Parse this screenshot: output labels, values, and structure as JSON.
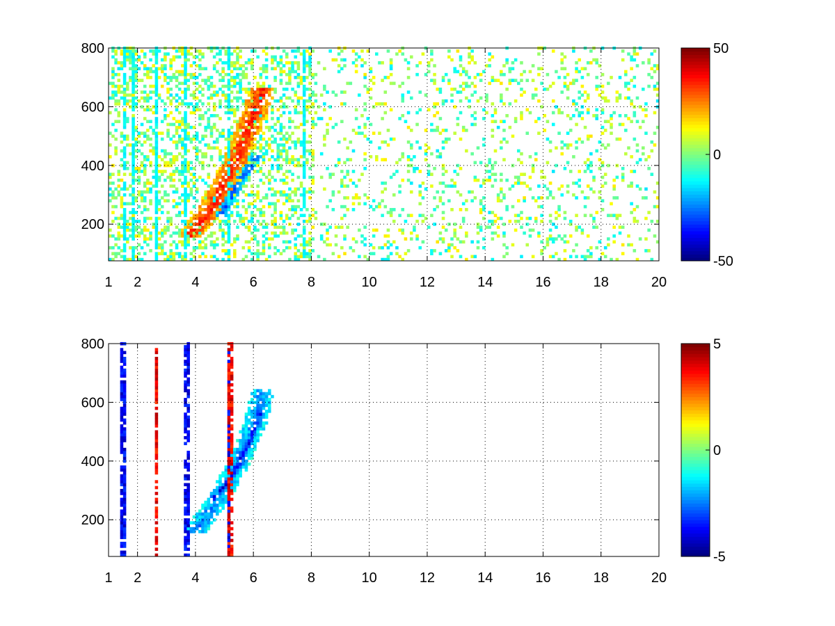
{
  "chart_data": [
    {
      "type": "heatmap",
      "title": "",
      "xlabel": "",
      "ylabel": "",
      "xlim": [
        1,
        20
      ],
      "ylim": [
        75,
        800
      ],
      "x_ticks": [
        1,
        2,
        4,
        6,
        8,
        10,
        12,
        14,
        16,
        18,
        20
      ],
      "x_tick_labels": [
        "1",
        "2",
        "4",
        "6",
        "8",
        "10",
        "12",
        "14",
        "16",
        "18",
        "20"
      ],
      "y_ticks": [
        200,
        400,
        600,
        800
      ],
      "y_tick_labels": [
        "200",
        "400",
        "600",
        "800"
      ],
      "grid": true,
      "colormap": "jet",
      "colorbar": {
        "min": -50,
        "max": 50,
        "tick_values": [
          -50,
          0,
          50
        ],
        "tick_labels": [
          "-50",
          "0",
          "50"
        ]
      },
      "features": [
        {
          "shape": "band",
          "value": 35,
          "center": [
            [
              3.7,
              150
            ],
            [
              4.5,
              250
            ],
            [
              5.2,
              380
            ],
            [
              5.9,
              550
            ],
            [
              6.3,
              660
            ]
          ],
          "half_width_x": 0.45,
          "x_extent": [
            3.5,
            6.6
          ]
        },
        {
          "shape": "band",
          "value": -30,
          "center": [
            [
              4.8,
              220
            ],
            [
              5.4,
              330
            ],
            [
              6.1,
              430
            ]
          ],
          "half_width_x": 0.2,
          "x_extent": [
            4.6,
            6.3
          ]
        },
        {
          "shape": "vertical_streaks",
          "x": [
            1.5,
            1.8,
            2.6,
            3.6,
            5.1,
            7.7
          ],
          "value": -15
        },
        {
          "shape": "scattered_noise",
          "x_range": [
            1,
            20
          ],
          "value_range": [
            -15,
            15
          ],
          "density": "sparse"
        }
      ]
    },
    {
      "type": "heatmap",
      "title": "",
      "xlabel": "",
      "ylabel": "",
      "xlim": [
        1,
        20
      ],
      "ylim": [
        75,
        800
      ],
      "x_ticks": [
        1,
        2,
        4,
        6,
        8,
        10,
        12,
        14,
        16,
        18,
        20
      ],
      "x_tick_labels": [
        "1",
        "2",
        "4",
        "6",
        "8",
        "10",
        "12",
        "14",
        "16",
        "18",
        "20"
      ],
      "y_ticks": [
        200,
        400,
        600,
        800
      ],
      "y_tick_labels": [
        "200",
        "400",
        "600",
        "800"
      ],
      "grid": true,
      "colormap": "jet",
      "colorbar": {
        "min": -5,
        "max": 5,
        "tick_values": [
          -5,
          0,
          5
        ],
        "tick_labels": [
          "-5",
          "0",
          "5"
        ]
      },
      "features": [
        {
          "shape": "band",
          "value": -2.5,
          "center": [
            [
              3.9,
              150
            ],
            [
              4.7,
              260
            ],
            [
              5.4,
              380
            ],
            [
              6.0,
              520
            ],
            [
              6.3,
              640
            ]
          ],
          "half_width_x": 0.4,
          "x_extent": [
            3.6,
            6.9
          ]
        },
        {
          "shape": "band",
          "value": -4,
          "center": [
            [
              4.5,
              260
            ],
            [
              5.2,
              340
            ],
            [
              5.8,
              460
            ],
            [
              6.2,
              560
            ]
          ],
          "half_width_x": 0.15,
          "x_extent": [
            4.3,
            6.5
          ]
        },
        {
          "shape": "vertical_streaks",
          "x": [
            1.45,
            3.65,
            5.1
          ],
          "value": -4.5
        },
        {
          "shape": "vertical_streaks",
          "x": [
            2.6,
            5.15
          ],
          "value": 4.5
        }
      ]
    }
  ]
}
